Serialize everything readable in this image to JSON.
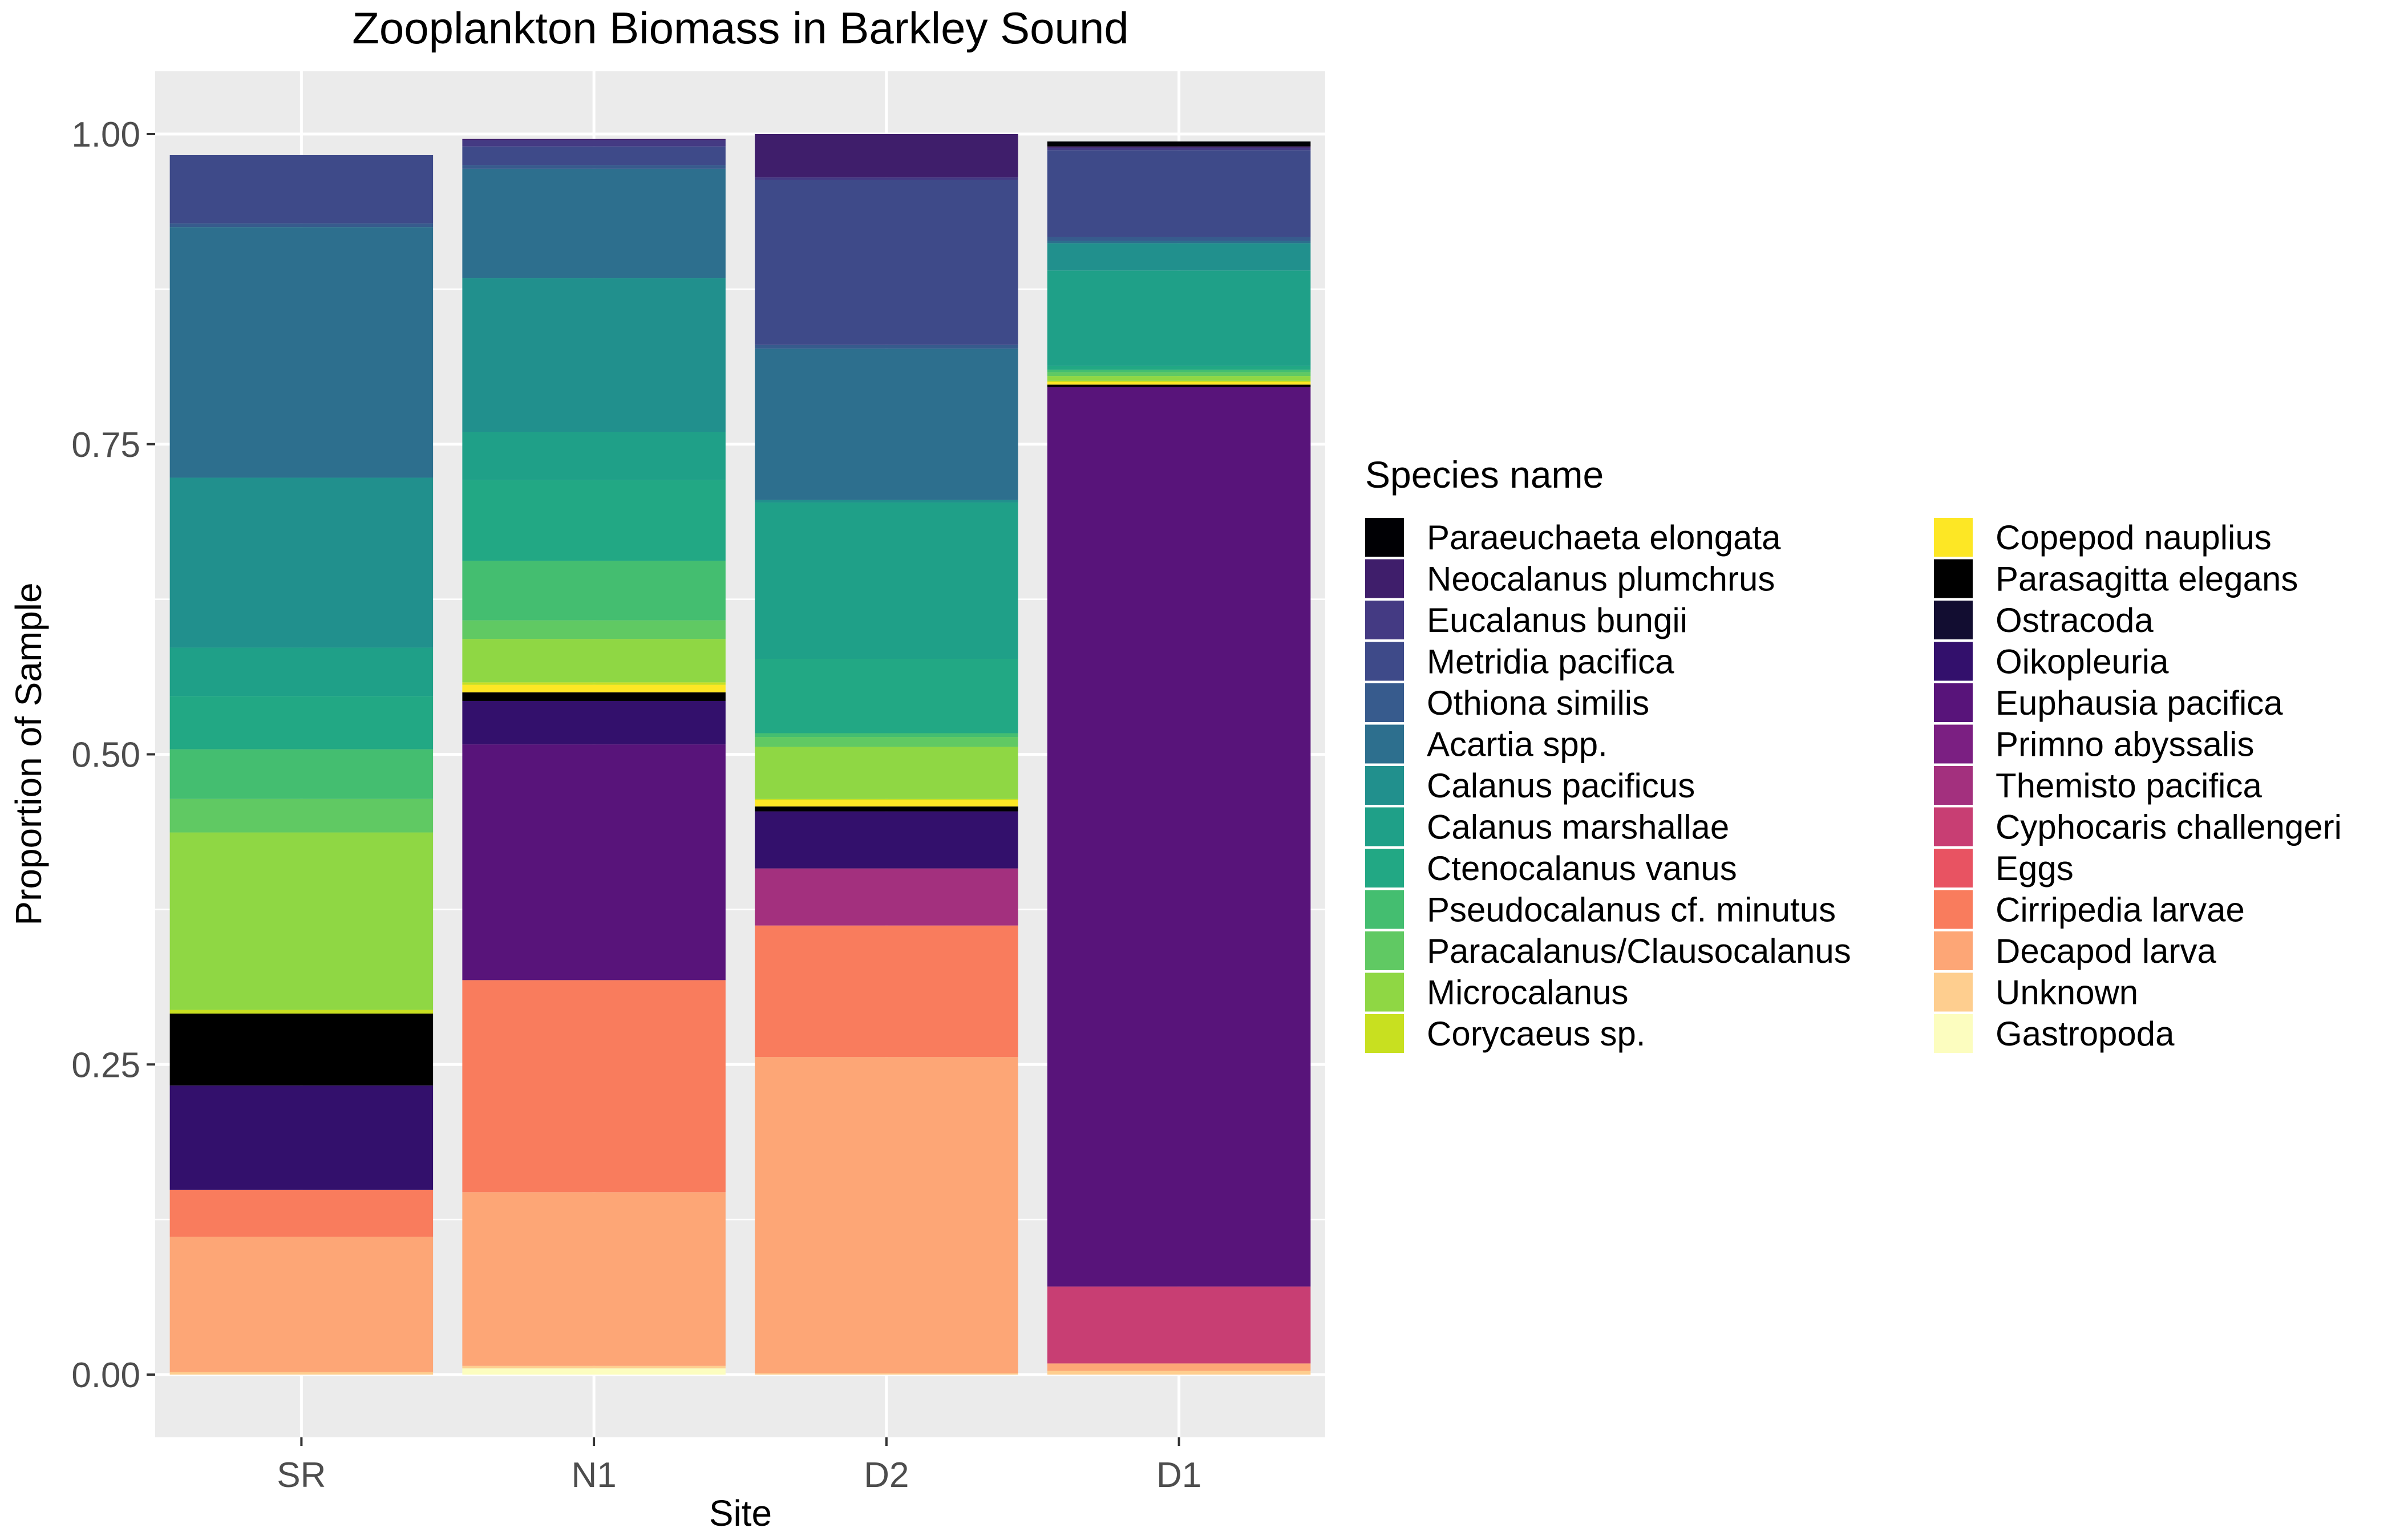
{
  "chart_data": {
    "type": "bar",
    "stacked": true,
    "title": "Zooplankton Biomass in Barkley Sound",
    "xlabel": "Site",
    "ylabel": "Proportion of Sample",
    "ylim": [
      -0.05,
      1.05
    ],
    "yticks": [
      "0.00",
      "0.25",
      "0.50",
      "0.75",
      "1.00"
    ],
    "ytick_values": [
      0,
      0.25,
      0.5,
      0.75,
      1.0
    ],
    "grid": true,
    "legend_title": "Species name",
    "legend_position": "right",
    "categories": [
      "SR",
      "N1",
      "D2",
      "D1"
    ],
    "series": [
      {
        "name": "Paraeuchaeta elongata",
        "color": "#000004",
        "values": [
          0,
          0,
          0,
          0.004
        ]
      },
      {
        "name": "Neocalanus plumchrus",
        "color": "#3F1E6B",
        "values": [
          0,
          0.001,
          0.035,
          0.001
        ]
      },
      {
        "name": "Eucalanus bungii",
        "color": "#443A83",
        "values": [
          0,
          0.005,
          0.002,
          0.002
        ]
      },
      {
        "name": "Metridia pacifica",
        "color": "#3E4A89",
        "values": [
          0.055,
          0.015,
          0.133,
          0.07
        ]
      },
      {
        "name": "Othiona similis",
        "color": "#375B8D",
        "values": [
          0.003,
          0.003,
          0.003,
          0.003
        ]
      },
      {
        "name": "Acartia spp.",
        "color": "#2D6F8E",
        "values": [
          0.202,
          0.088,
          0.122,
          0.002
        ]
      },
      {
        "name": "Calanus pacificus",
        "color": "#21908D",
        "values": [
          0.137,
          0.124,
          0.002,
          0.022
        ]
      },
      {
        "name": "Calanus marshallae",
        "color": "#1FA088",
        "values": [
          0.039,
          0.039,
          0.126,
          0.077
        ]
      },
      {
        "name": "Ctenocalanus vanus",
        "color": "#22A884",
        "values": [
          0.043,
          0.065,
          0.06,
          0.003
        ]
      },
      {
        "name": "Pseudocalanus cf. minutus",
        "color": "#44BE70",
        "values": [
          0.04,
          0.048,
          0.003,
          0.002
        ]
      },
      {
        "name": "Paracalanus/Clausocalanus",
        "color": "#60C963",
        "values": [
          0.027,
          0.015,
          0.008,
          0.003
        ]
      },
      {
        "name": "Microcalanus",
        "color": "#8FD744",
        "values": [
          0.143,
          0.035,
          0.042,
          0.004
        ]
      },
      {
        "name": "Corycaeus sp.",
        "color": "#C8E020",
        "values": [
          0.003,
          0.002,
          0.001,
          0.001
        ]
      },
      {
        "name": "Copepod nauplius",
        "color": "#FDE725",
        "values": [
          0,
          0.006,
          0.005,
          0.002
        ]
      },
      {
        "name": "Parasagitta elegans",
        "color": "#000000",
        "values": [
          0.058,
          0.007,
          0.004,
          0.002
        ]
      },
      {
        "name": "Ostracoda",
        "color": "#120D31",
        "values": [
          0,
          0,
          0,
          0
        ]
      },
      {
        "name": "Oikopleuria",
        "color": "#33106C",
        "values": [
          0.084,
          0.035,
          0.046,
          0
        ]
      },
      {
        "name": "Euphausia pacifica",
        "color": "#58147A",
        "values": [
          0,
          0.19,
          0,
          0.725
        ]
      },
      {
        "name": "Primno abyssalis",
        "color": "#7B1F82",
        "values": [
          0,
          0,
          0,
          0
        ]
      },
      {
        "name": "Themisto pacifica",
        "color": "#A3307E",
        "values": [
          0,
          0,
          0.046,
          0
        ]
      },
      {
        "name": "Cyphocaris challengeri",
        "color": "#C83E73",
        "values": [
          0,
          0,
          0,
          0.062
        ]
      },
      {
        "name": "Eggs",
        "color": "#E85362",
        "values": [
          0,
          0,
          0,
          0
        ]
      },
      {
        "name": "Cirripedia larvae",
        "color": "#F97C5D",
        "values": [
          0.038,
          0.171,
          0.106,
          0
        ]
      },
      {
        "name": "Decapod larva",
        "color": "#FDA676",
        "values": [
          0.109,
          0.14,
          0.255,
          0.006
        ]
      },
      {
        "name": "Unknown",
        "color": "#FECE8F",
        "values": [
          0.002,
          0.002,
          0.001,
          0.003
        ]
      },
      {
        "name": "Gastropoda",
        "color": "#FCFDBF",
        "values": [
          0,
          0.005,
          0,
          0
        ]
      }
    ]
  }
}
